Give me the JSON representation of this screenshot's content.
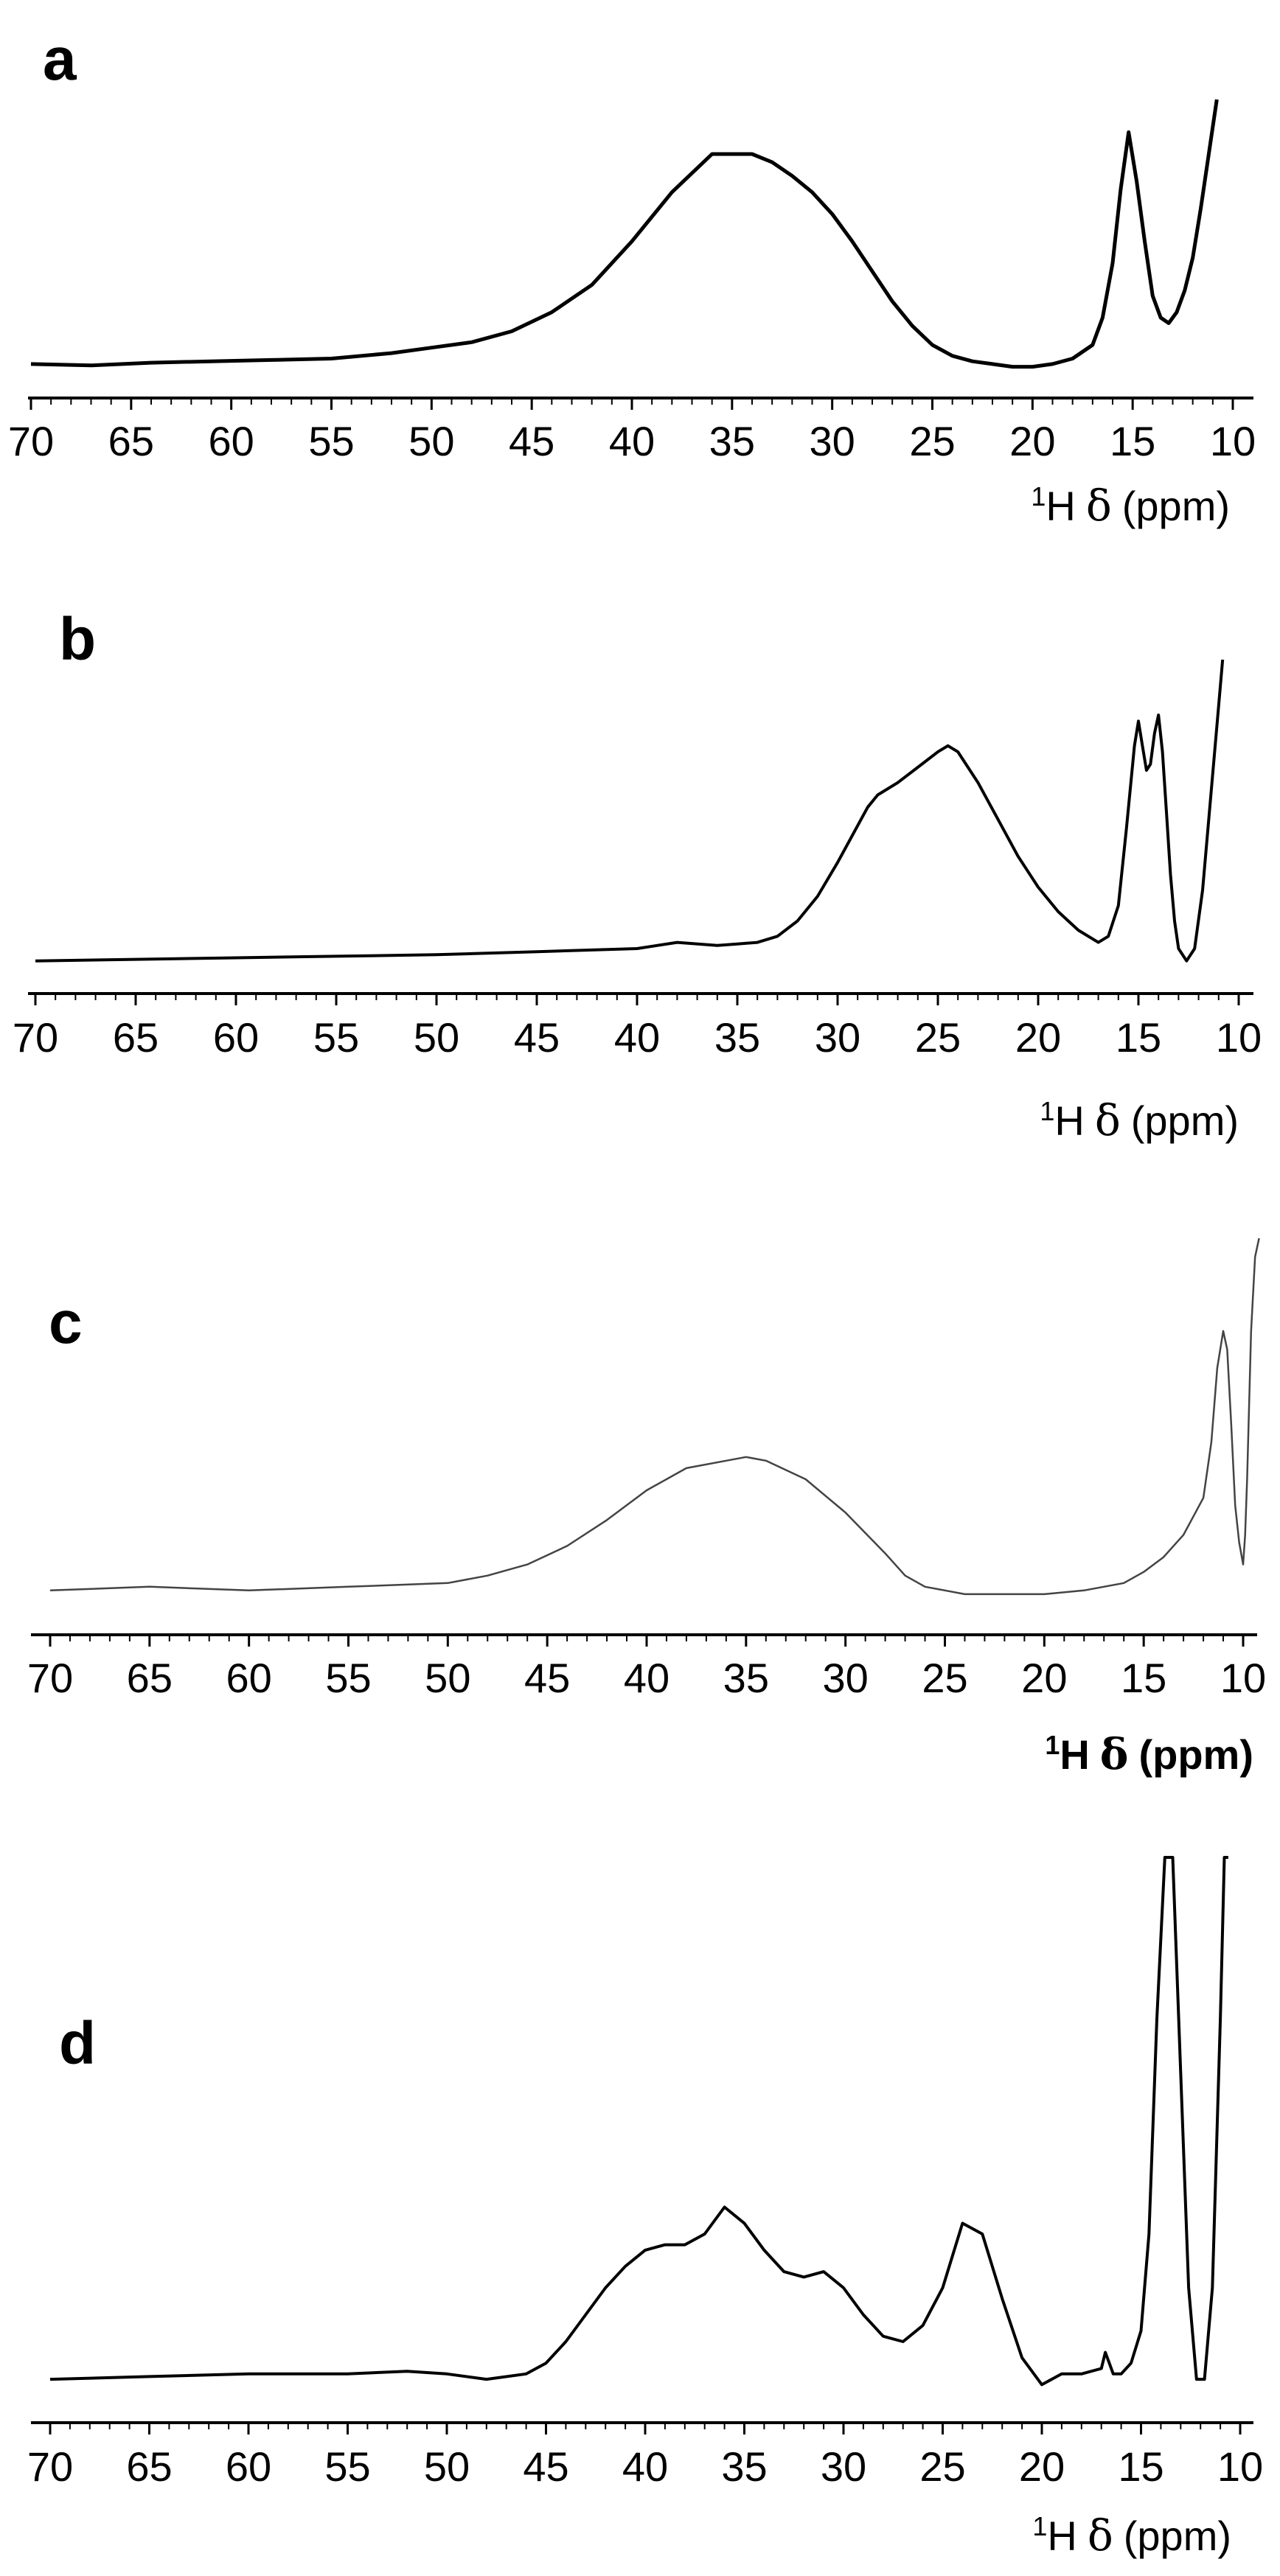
{
  "chart_data": [
    {
      "type": "line",
      "panel_label": "a",
      "xlabel_nucleus": "1",
      "xlabel_element": "H",
      "xlabel_symbol": "δ",
      "xlabel_unit": "(ppm)",
      "xlim": [
        70,
        10
      ],
      "x_reversed": true,
      "x_tick_labels": [
        "70",
        "65",
        "60",
        "55",
        "50",
        "45",
        "40",
        "35",
        "30",
        "25",
        "20",
        "15",
        "10"
      ],
      "ylabel": "",
      "stroke_color": "#000000",
      "series": [
        {
          "x": [
            70,
            67,
            64,
            61,
            58,
            55,
            52,
            50,
            48,
            46,
            44,
            42,
            40,
            38,
            36,
            34,
            33,
            32,
            31,
            30,
            29,
            28,
            27,
            26,
            25,
            24,
            23,
            22,
            21,
            20,
            19,
            18,
            17,
            16.5,
            16,
            15.6,
            15.2,
            14.8,
            14.4,
            14.0,
            13.6,
            13.2,
            12.8,
            12.4,
            12.0,
            11.6,
            11.2,
            10.8
          ],
          "y": [
            0.03,
            0.025,
            0.035,
            0.04,
            0.045,
            0.05,
            0.07,
            0.09,
            0.11,
            0.15,
            0.22,
            0.32,
            0.48,
            0.66,
            0.8,
            0.8,
            0.77,
            0.72,
            0.66,
            0.58,
            0.48,
            0.37,
            0.26,
            0.17,
            0.1,
            0.06,
            0.04,
            0.03,
            0.02,
            0.02,
            0.03,
            0.05,
            0.1,
            0.2,
            0.4,
            0.67,
            0.88,
            0.7,
            0.48,
            0.28,
            0.2,
            0.18,
            0.22,
            0.3,
            0.42,
            0.6,
            0.8,
            1.0
          ]
        }
      ]
    },
    {
      "type": "line",
      "panel_label": "b",
      "xlabel_nucleus": "1",
      "xlabel_element": "H",
      "xlabel_symbol": "δ",
      "xlabel_unit": "(ppm)",
      "xlim": [
        70,
        10
      ],
      "x_reversed": true,
      "x_tick_labels": [
        "70",
        "65",
        "60",
        "55",
        "50",
        "45",
        "40",
        "35",
        "30",
        "25",
        "20",
        "15",
        "10"
      ],
      "ylabel": "",
      "stroke_color": "#000000",
      "series": [
        {
          "x": [
            70,
            65,
            60,
            55,
            50,
            45,
            40,
            38,
            36,
            35,
            34,
            33,
            32,
            31,
            30,
            29,
            28.5,
            28,
            27,
            26,
            25,
            24.5,
            24,
            23,
            22,
            21,
            20,
            19,
            18,
            17,
            16.5,
            16,
            15.6,
            15.2,
            15.0,
            14.8,
            14.6,
            14.4,
            14.2,
            14.0,
            13.8,
            13.6,
            13.4,
            13.2,
            13.0,
            12.6,
            12.2,
            11.8,
            11.4,
            11.0,
            10.8
          ],
          "y": [
            0.02,
            0.025,
            0.03,
            0.035,
            0.04,
            0.05,
            0.06,
            0.08,
            0.07,
            0.075,
            0.08,
            0.1,
            0.15,
            0.23,
            0.34,
            0.46,
            0.52,
            0.56,
            0.6,
            0.65,
            0.7,
            0.72,
            0.7,
            0.6,
            0.48,
            0.36,
            0.26,
            0.18,
            0.12,
            0.08,
            0.1,
            0.2,
            0.45,
            0.72,
            0.8,
            0.72,
            0.64,
            0.66,
            0.76,
            0.82,
            0.7,
            0.5,
            0.3,
            0.15,
            0.06,
            0.02,
            0.06,
            0.25,
            0.55,
            0.85,
            1.0
          ]
        }
      ]
    },
    {
      "type": "line",
      "panel_label": "c",
      "xlabel_nucleus": "1",
      "xlabel_element": "H",
      "xlabel_symbol": "δ",
      "xlabel_unit": "(ppm)",
      "xlabel_bold": true,
      "xlim": [
        70,
        10
      ],
      "x_reversed": true,
      "x_tick_labels": [
        "70",
        "65",
        "60",
        "55",
        "50",
        "45",
        "40",
        "35",
        "30",
        "25",
        "20",
        "15",
        "10"
      ],
      "ylabel": "",
      "stroke_color": "#444444",
      "series": [
        {
          "x": [
            70,
            65,
            60,
            55,
            50,
            48,
            46,
            44,
            42,
            40,
            38,
            36,
            35,
            34,
            32,
            30,
            28,
            27,
            26,
            25,
            24,
            22,
            20,
            18,
            16,
            15,
            14,
            13,
            12.5,
            12,
            11.6,
            11.3,
            11.0,
            10.8,
            10.6,
            10.4,
            10.2,
            10.0,
            9.9,
            9.8,
            9.6,
            9.4,
            9.2
          ],
          "y": [
            0.05,
            0.06,
            0.05,
            0.06,
            0.07,
            0.09,
            0.12,
            0.17,
            0.24,
            0.32,
            0.38,
            0.4,
            0.41,
            0.4,
            0.35,
            0.26,
            0.15,
            0.09,
            0.06,
            0.05,
            0.04,
            0.04,
            0.04,
            0.05,
            0.07,
            0.1,
            0.14,
            0.2,
            0.25,
            0.3,
            0.45,
            0.65,
            0.75,
            0.7,
            0.5,
            0.28,
            0.18,
            0.12,
            0.2,
            0.35,
            0.75,
            0.95,
            1.0
          ]
        }
      ]
    },
    {
      "type": "line",
      "panel_label": "d",
      "xlabel_nucleus": "1",
      "xlabel_element": "H",
      "xlabel_symbol": "δ",
      "xlabel_unit": "(ppm)",
      "xlim": [
        70,
        10
      ],
      "x_reversed": true,
      "x_tick_labels": [
        "70",
        "65",
        "60",
        "55",
        "50",
        "45",
        "40",
        "35",
        "30",
        "25",
        "20",
        "15",
        "10"
      ],
      "ylabel": "",
      "stroke_color": "#000000",
      "series": [
        {
          "x": [
            70,
            65,
            60,
            55,
            52,
            50,
            48,
            46,
            45,
            44,
            43,
            42,
            41,
            40,
            39,
            38,
            37,
            36,
            35,
            34,
            33,
            32,
            31,
            30,
            29,
            28,
            27,
            26,
            25,
            24,
            23,
            22,
            21,
            20,
            19,
            18,
            17,
            16.8,
            16.6,
            16.4,
            16,
            15.5,
            15,
            14.6,
            14.2,
            13.8,
            13.4,
            13.0,
            12.6,
            12.2,
            11.8,
            11.4,
            11.0,
            10.8,
            10.6
          ],
          "y": [
            0.03,
            0.035,
            0.04,
            0.04,
            0.045,
            0.04,
            0.03,
            0.04,
            0.06,
            0.1,
            0.15,
            0.2,
            0.24,
            0.27,
            0.28,
            0.28,
            0.3,
            0.35,
            0.32,
            0.27,
            0.23,
            0.22,
            0.23,
            0.2,
            0.15,
            0.11,
            0.1,
            0.13,
            0.2,
            0.32,
            0.3,
            0.18,
            0.07,
            0.02,
            0.04,
            0.04,
            0.05,
            0.08,
            0.06,
            0.04,
            0.04,
            0.06,
            0.12,
            0.3,
            0.7,
            1.0,
            1.0,
            0.6,
            0.2,
            0.03,
            0.03,
            0.2,
            0.7,
            1.0,
            1.0
          ]
        }
      ]
    }
  ]
}
